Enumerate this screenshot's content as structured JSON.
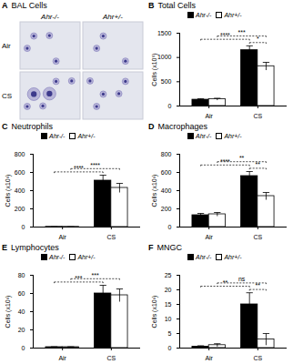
{
  "chart_data": [
    {
      "type": "image",
      "panel": "A",
      "title": "BAL Cells",
      "columns": [
        "Ahr-/-",
        "Ahr+/-"
      ],
      "rows": [
        "Air",
        "CS"
      ]
    },
    {
      "type": "bar",
      "panel": "B",
      "title": "Total Cells",
      "y_label": "Cells (x10⁵)",
      "categories": [
        "Air",
        "CS"
      ],
      "series": [
        {
          "name": "Ahr-/-",
          "color": "#000000",
          "values": [
            130,
            1150
          ],
          "errors": [
            20,
            90
          ]
        },
        {
          "name": "Ahr+/-",
          "color": "#ffffff",
          "values": [
            140,
            820
          ],
          "errors": [
            20,
            80
          ]
        }
      ],
      "ylim": [
        0,
        1500
      ],
      "yticks": [
        0,
        500,
        1000,
        1500
      ],
      "legend": "top",
      "significance": [
        {
          "from": [
            "Air",
            "Ahr-/-"
          ],
          "to": [
            "CS",
            "Ahr-/-"
          ],
          "label": "****"
        },
        {
          "from": [
            "CS",
            "Ahr-/-"
          ],
          "to": [
            "CS",
            "Ahr+/-"
          ],
          "label": "*"
        },
        {
          "from": [
            "Air",
            "Ahr+/-"
          ],
          "to": [
            "CS",
            "Ahr+/-"
          ],
          "label": "***"
        }
      ]
    },
    {
      "type": "bar",
      "panel": "C",
      "title": "Neutrophils",
      "y_label": "Cells (x10³)",
      "categories": [
        "Air",
        "CS"
      ],
      "series": [
        {
          "name": "Ahr-/-",
          "color": "#000000",
          "values": [
            2,
            510
          ],
          "errors": [
            1,
            60
          ]
        },
        {
          "name": "Ahr+/-",
          "color": "#ffffff",
          "values": [
            2,
            430
          ],
          "errors": [
            1,
            50
          ]
        }
      ],
      "ylim": [
        0,
        800
      ],
      "yticks": [
        0,
        200,
        400,
        600,
        800
      ],
      "legend": "top",
      "significance": [
        {
          "from": [
            "Air",
            "Ahr-/-"
          ],
          "to": [
            "CS",
            "Ahr-/-"
          ],
          "label": "****"
        },
        {
          "from": [
            "Air",
            "Ahr+/-"
          ],
          "to": [
            "CS",
            "Ahr+/-"
          ],
          "label": "****"
        }
      ]
    },
    {
      "type": "bar",
      "panel": "D",
      "title": "Macrophages",
      "y_label": "Cells (x10³)",
      "categories": [
        "Air",
        "CS"
      ],
      "series": [
        {
          "name": "Ahr-/-",
          "color": "#000000",
          "values": [
            130,
            560
          ],
          "errors": [
            20,
            50
          ]
        },
        {
          "name": "Ahr+/-",
          "color": "#ffffff",
          "values": [
            140,
            340
          ],
          "errors": [
            20,
            40
          ]
        }
      ],
      "ylim": [
        0,
        800
      ],
      "yticks": [
        0,
        200,
        400,
        600,
        800
      ],
      "legend": "top",
      "significance": [
        {
          "from": [
            "Air",
            "Ahr-/-"
          ],
          "to": [
            "CS",
            "Ahr-/-"
          ],
          "label": "****"
        },
        {
          "from": [
            "CS",
            "Ahr-/-"
          ],
          "to": [
            "CS",
            "Ahr+/-"
          ],
          "label": "**"
        },
        {
          "from": [
            "Air",
            "Ahr+/-"
          ],
          "to": [
            "CS",
            "Ahr+/-"
          ],
          "label": "**"
        }
      ]
    },
    {
      "type": "bar",
      "panel": "E",
      "title": "Lymphocytes",
      "y_label": "Cells (x10³)",
      "categories": [
        "Air",
        "CS"
      ],
      "series": [
        {
          "name": "Ahr-/-",
          "color": "#000000",
          "values": [
            1,
            60
          ],
          "errors": [
            0.5,
            9
          ]
        },
        {
          "name": "Ahr+/-",
          "color": "#ffffff",
          "values": [
            1,
            58
          ],
          "errors": [
            0.5,
            7
          ]
        }
      ],
      "ylim": [
        0,
        80
      ],
      "yticks": [
        0,
        20,
        40,
        60,
        80
      ],
      "legend": "top",
      "significance": [
        {
          "from": [
            "Air",
            "Ahr-/-"
          ],
          "to": [
            "CS",
            "Ahr-/-"
          ],
          "label": "***"
        },
        {
          "from": [
            "Air",
            "Ahr+/-"
          ],
          "to": [
            "CS",
            "Ahr+/-"
          ],
          "label": "***"
        }
      ]
    },
    {
      "type": "bar",
      "panel": "F",
      "title": "MNGC",
      "y_label": "Cells (x10³)",
      "categories": [
        "Air",
        "CS"
      ],
      "series": [
        {
          "name": "Ahr-/-",
          "color": "#000000",
          "values": [
            0.5,
            15
          ],
          "errors": [
            0.3,
            4
          ]
        },
        {
          "name": "Ahr+/-",
          "color": "#ffffff",
          "values": [
            1,
            3
          ],
          "errors": [
            0.5,
            2
          ]
        }
      ],
      "ylim": [
        0,
        25
      ],
      "yticks": [
        0,
        5,
        10,
        15,
        20,
        25
      ],
      "legend": "top",
      "significance": [
        {
          "from": [
            "Air",
            "Ahr-/-"
          ],
          "to": [
            "CS",
            "Ahr-/-"
          ],
          "label": "**"
        },
        {
          "from": [
            "CS",
            "Ahr-/-"
          ],
          "to": [
            "CS",
            "Ahr+/-"
          ],
          "label": "**"
        },
        {
          "from": [
            "Air",
            "Ahr+/-"
          ],
          "to": [
            "CS",
            "Ahr+/-"
          ],
          "label": "ns"
        }
      ]
    }
  ]
}
